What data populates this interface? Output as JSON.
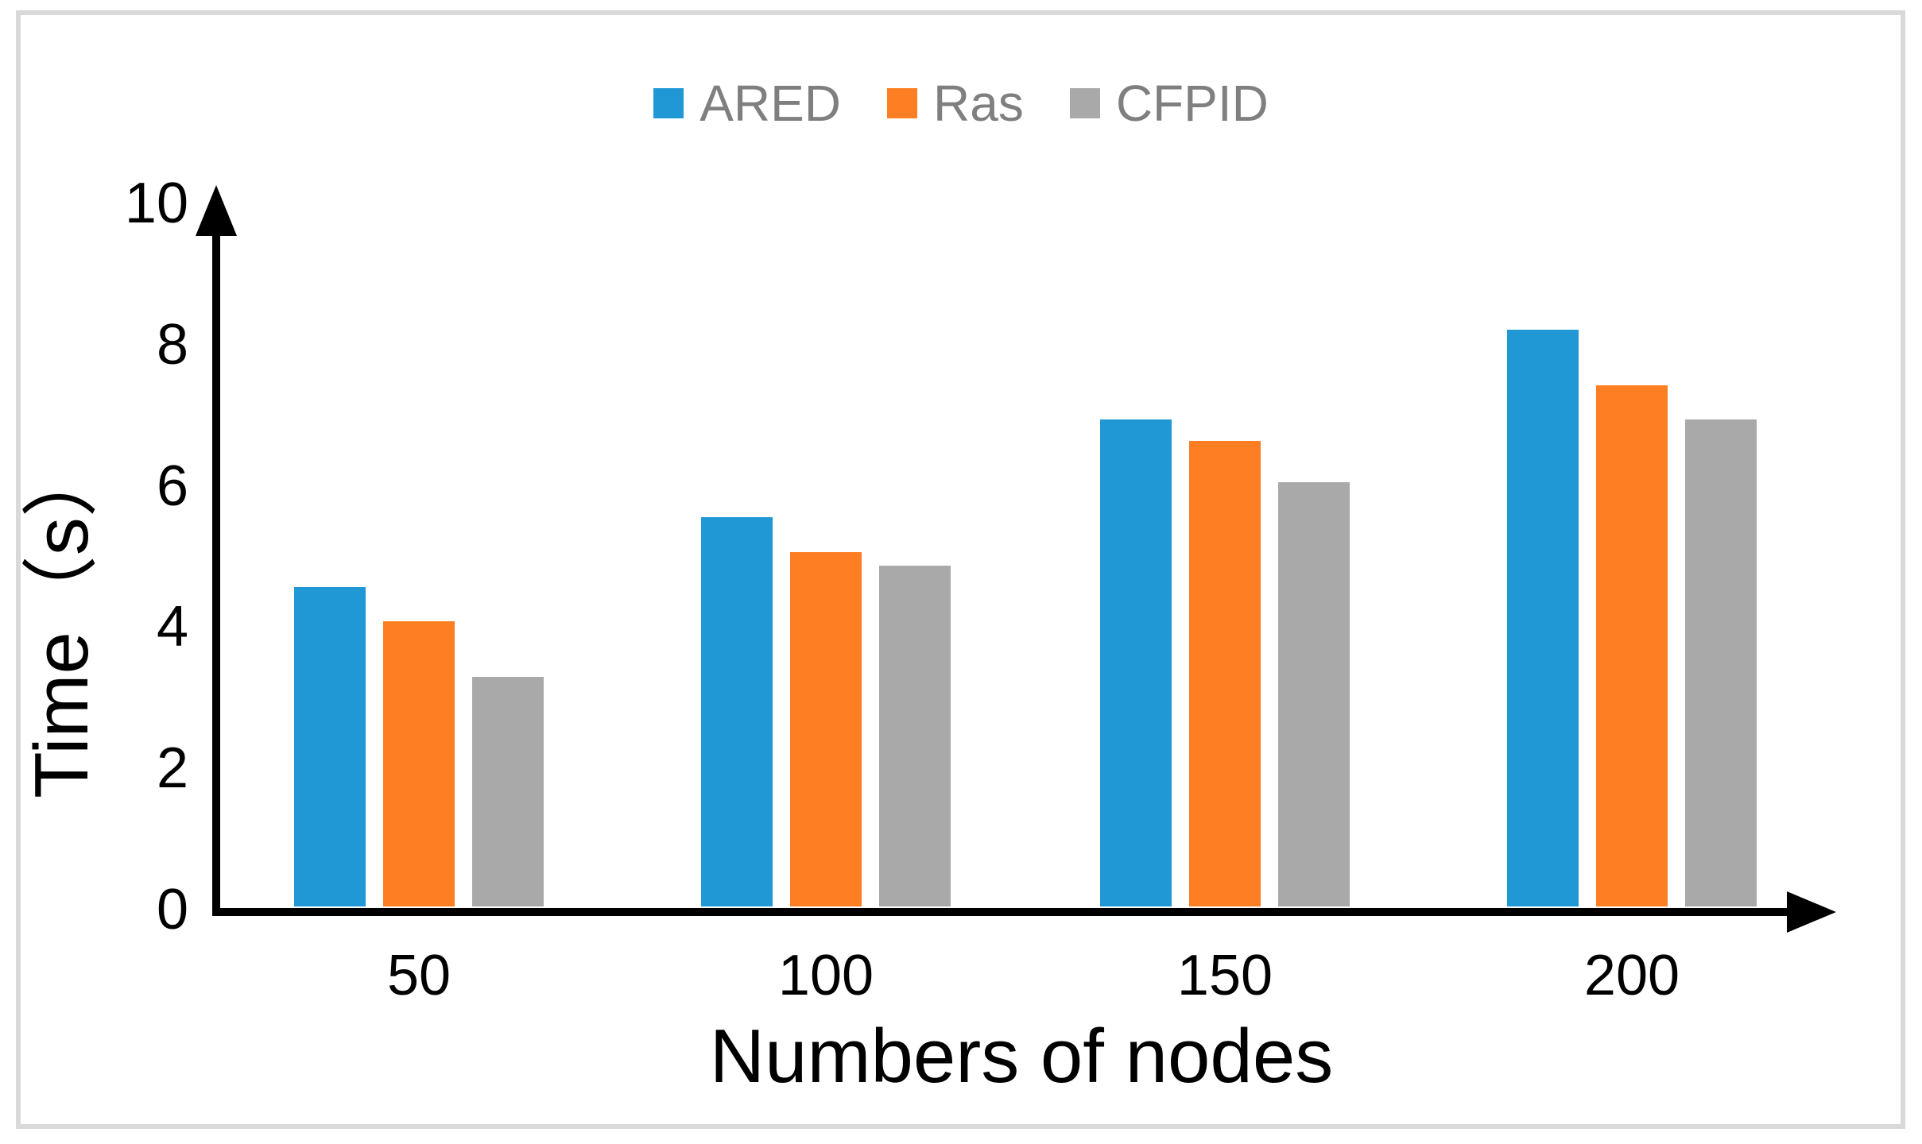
{
  "figure": {
    "background_color": "#FFFFFF",
    "frame_border_color": "#D9D9D9",
    "axis_color": "#000000",
    "legend_text_color": "#7F7F7F"
  },
  "legend": {
    "items": [
      {
        "label": "ARED",
        "color": "#2098D5"
      },
      {
        "label": "Ras",
        "color": "#FD7E23"
      },
      {
        "label": "CFPID",
        "color": "#A9A9A9"
      }
    ]
  },
  "chart_data": {
    "type": "bar",
    "title": "",
    "xlabel": "Numbers of nodes",
    "ylabel": "Time（s）",
    "categories": [
      "50",
      "100",
      "150",
      "200"
    ],
    "series": [
      {
        "name": "ARED",
        "color": "#2098D5",
        "values": [
          4.6,
          5.6,
          7.0,
          8.3
        ]
      },
      {
        "name": "Ras",
        "color": "#FD7E23",
        "values": [
          4.1,
          5.1,
          6.7,
          7.5
        ]
      },
      {
        "name": "CFPID",
        "color": "#A9A9A9",
        "values": [
          3.3,
          4.9,
          6.1,
          7.0
        ]
      }
    ],
    "ylim": [
      0,
      10
    ],
    "yticks": [
      0,
      2,
      4,
      6,
      8,
      10
    ],
    "grid": false,
    "legend_position": "top-center"
  }
}
